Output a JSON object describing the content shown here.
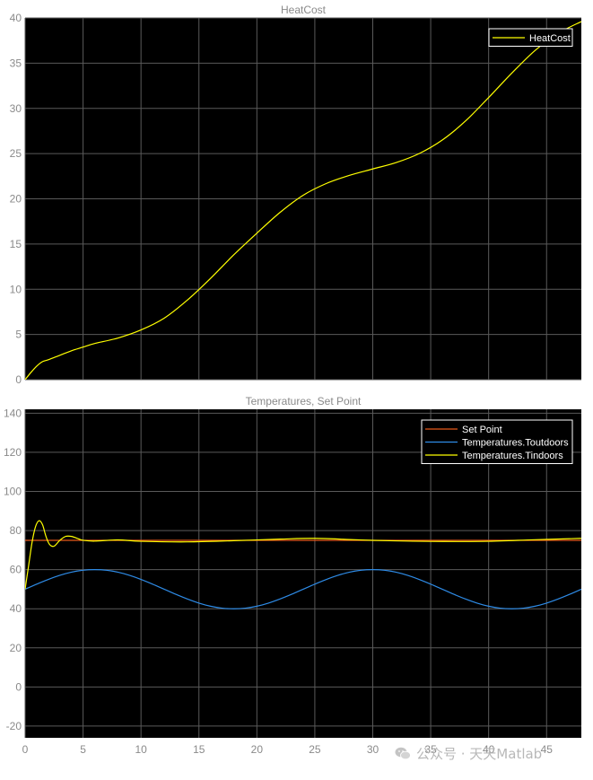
{
  "watermark": "公众号 · 天天Matlab",
  "chart_data": [
    {
      "type": "line",
      "title": "HeatCost",
      "xlim": [
        0,
        48
      ],
      "ylim": [
        0,
        40
      ],
      "x_ticks": [
        0,
        5,
        10,
        15,
        20,
        25,
        30,
        35,
        40,
        45
      ],
      "y_ticks": [
        0,
        5,
        10,
        15,
        20,
        25,
        30,
        35,
        40
      ],
      "grid": true,
      "background": "#000000",
      "legend_position": "top-right",
      "series": [
        {
          "name": "HeatCost",
          "color": "#ffff00",
          "x": [
            0,
            0.5,
            1,
            1.5,
            2,
            3,
            4,
            5,
            6,
            8,
            10,
            12,
            14,
            16,
            18,
            20,
            22,
            24,
            26,
            28,
            30,
            32,
            34,
            36,
            38,
            40,
            42,
            44,
            46,
            48
          ],
          "y": [
            0,
            0.8,
            1.5,
            2.0,
            2.2,
            2.7,
            3.2,
            3.6,
            4.0,
            4.6,
            5.5,
            6.8,
            8.8,
            11.2,
            13.8,
            16.2,
            18.5,
            20.4,
            21.7,
            22.6,
            23.3,
            24.0,
            25.0,
            26.5,
            28.6,
            31.2,
            33.9,
            36.4,
            38.3,
            39.6
          ]
        }
      ]
    },
    {
      "type": "line",
      "title": "Temperatures, Set Point",
      "xlim": [
        0,
        48
      ],
      "ylim": [
        -26,
        142
      ],
      "x_ticks": [
        0,
        5,
        10,
        15,
        20,
        25,
        30,
        35,
        40,
        45
      ],
      "y_ticks": [
        -20,
        0,
        20,
        40,
        60,
        80,
        100,
        120,
        140
      ],
      "grid": true,
      "background": "#000000",
      "legend_position": "top-right",
      "series": [
        {
          "name": "Set Point",
          "color": "#e8591a",
          "x": [
            0,
            48
          ],
          "y": [
            75,
            75
          ]
        },
        {
          "name": "Temperatures.Toutdoors",
          "color": "#2e8be6",
          "x": [
            0,
            1,
            2,
            3,
            4,
            5,
            6,
            7,
            8,
            9,
            10,
            11,
            12,
            13,
            14,
            15,
            16,
            17,
            18,
            19,
            20,
            21,
            22,
            23,
            24,
            25,
            26,
            27,
            28,
            29,
            30,
            31,
            32,
            33,
            34,
            35,
            36,
            37,
            38,
            39,
            40,
            41,
            42,
            43,
            44,
            45,
            46,
            47,
            48
          ],
          "y": [
            50,
            52.6,
            55,
            57.1,
            58.7,
            59.7,
            60,
            59.7,
            58.7,
            57.1,
            55,
            52.6,
            50,
            47.4,
            45,
            42.9,
            41.3,
            40.3,
            40,
            40.3,
            41.3,
            42.9,
            45,
            47.4,
            50,
            52.6,
            55,
            57.1,
            58.7,
            59.7,
            60,
            59.7,
            58.7,
            57.1,
            55,
            52.6,
            50,
            47.4,
            45,
            42.9,
            41.3,
            40.3,
            40,
            40.3,
            41.3,
            42.9,
            45,
            47.4,
            50
          ]
        },
        {
          "name": "Temperatures.Tindoors",
          "color": "#ffff00",
          "x": [
            0,
            0.3,
            0.6,
            0.9,
            1.2,
            1.5,
            1.8,
            2.1,
            2.5,
            3,
            3.5,
            4,
            4.5,
            5,
            6,
            8,
            10,
            14,
            18,
            22,
            25,
            28,
            30,
            33,
            36,
            40,
            44,
            48
          ],
          "y": [
            50,
            62,
            74,
            82,
            85,
            83,
            77,
            73,
            72,
            75,
            77,
            77,
            76,
            75,
            74.6,
            75.2,
            74.5,
            74.2,
            74.8,
            75.6,
            76,
            75.4,
            75,
            74.6,
            74.4,
            74.5,
            75.3,
            76
          ]
        }
      ]
    }
  ]
}
